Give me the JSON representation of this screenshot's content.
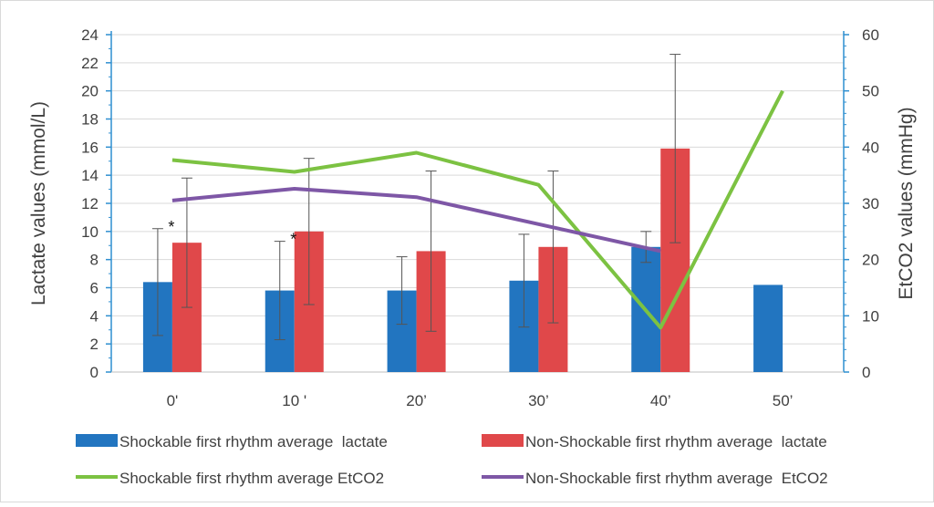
{
  "chart_data": {
    "type": "bar",
    "categories": [
      "0'",
      "10 '",
      "20’",
      "30’",
      "40’",
      "50’"
    ],
    "left_axis": {
      "label": "Lactate values (mmol/L)",
      "range": [
        0,
        24
      ],
      "ticks": [
        "0",
        "2",
        "4",
        "6",
        "8",
        "10",
        "12",
        "14",
        "16",
        "18",
        "20",
        "22",
        "24"
      ]
    },
    "right_axis": {
      "label": "EtCO2 values (mmHg)",
      "range": [
        0,
        60
      ],
      "ticks": [
        "0",
        "10",
        "20",
        "30",
        "40",
        "50",
        "60"
      ]
    },
    "grid": true,
    "legend_position": "bottom",
    "series": [
      {
        "name": "Shockable first rhythm average  lactate",
        "kind": "bar",
        "axis": "left",
        "color": "#2275C0",
        "values": [
          6.4,
          5.8,
          5.8,
          6.5,
          8.9,
          6.2
        ],
        "error_low": [
          2.6,
          2.3,
          3.4,
          3.2,
          7.8,
          null
        ],
        "error_high": [
          10.2,
          9.3,
          8.2,
          9.8,
          10.0,
          null
        ]
      },
      {
        "name": "Non-Shockable first rhythm average  lactate",
        "kind": "bar",
        "axis": "left",
        "color": "#E0484A",
        "values": [
          9.2,
          10.0,
          8.6,
          8.9,
          15.9,
          null
        ],
        "error_low": [
          4.6,
          4.8,
          2.9,
          3.5,
          9.2,
          null
        ],
        "error_high": [
          13.8,
          15.2,
          14.3,
          14.3,
          22.6,
          null
        ]
      },
      {
        "name": "Shockable first rhythm average EtCO2",
        "kind": "line",
        "axis": "right",
        "color": "#7CC242",
        "values": [
          37.7,
          35.6,
          39.0,
          33.3,
          7.9,
          50.0
        ]
      },
      {
        "name": "Non-Shockable first rhythm average  EtCO2",
        "kind": "line",
        "axis": "right",
        "color": "#7E57A6",
        "values": [
          30.5,
          32.6,
          31.1,
          26.3,
          21.5,
          null
        ]
      }
    ],
    "annotations": [
      {
        "text": "*",
        "category_index": 0
      },
      {
        "text": "*",
        "category_index": 1
      }
    ]
  }
}
